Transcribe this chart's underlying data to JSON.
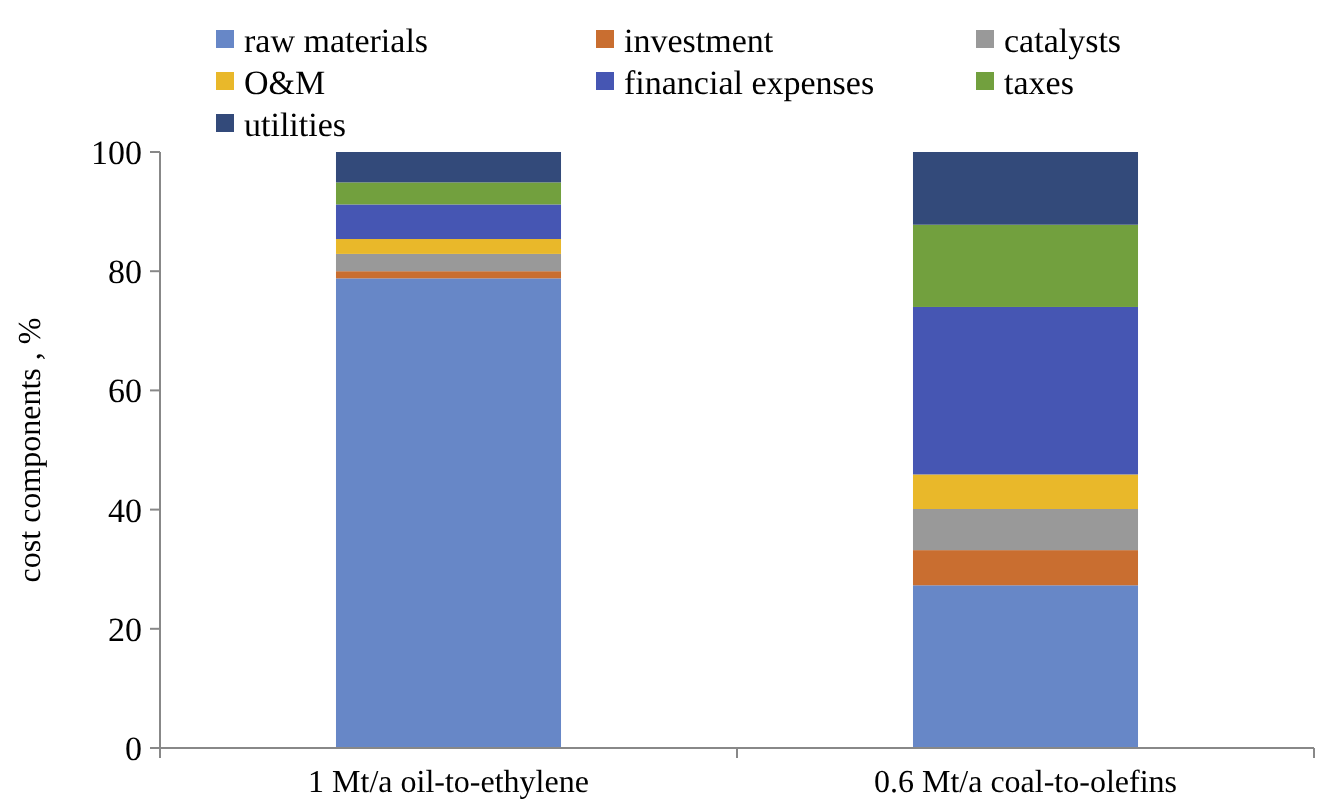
{
  "chart_data": {
    "type": "bar",
    "stacked": true,
    "ylabel": "cost components , %",
    "categories": [
      "1 Mt/a oil-to-ethylene",
      "0.6 Mt/a coal-to-olefins"
    ],
    "ylim": [
      0,
      100
    ],
    "yticks": [
      0,
      20,
      40,
      60,
      80,
      100
    ],
    "legend": "top",
    "grid": false,
    "series": [
      {
        "name": "raw materials",
        "color": "#6787c7",
        "values": [
          78.8,
          27.3
        ]
      },
      {
        "name": "investment",
        "color": "#c96e30",
        "values": [
          1.2,
          5.9
        ]
      },
      {
        "name": "catalysts",
        "color": "#999999",
        "values": [
          2.9,
          6.9
        ]
      },
      {
        "name": "O&M",
        "color": "#e9b82a",
        "values": [
          2.5,
          5.8
        ]
      },
      {
        "name": "financial expenses",
        "color": "#4656b3",
        "values": [
          5.8,
          28.1
        ]
      },
      {
        "name": "taxes",
        "color": "#72a03e",
        "values": [
          3.7,
          13.8
        ]
      },
      {
        "name": "utilities",
        "color": "#334a7a",
        "values": [
          5.1,
          12.2
        ]
      }
    ]
  }
}
